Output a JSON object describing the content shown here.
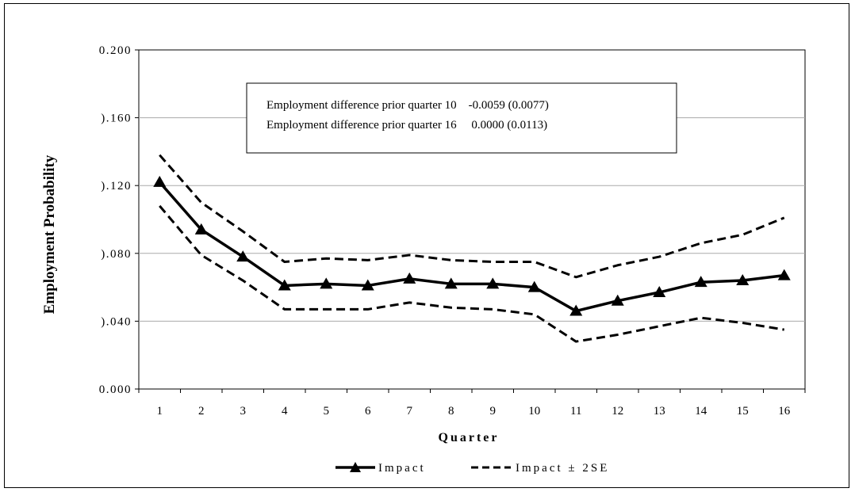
{
  "chart_data": {
    "type": "line",
    "xlabel": "Quarter",
    "ylabel": "Employment Probability",
    "categories": [
      "1",
      "2",
      "3",
      "4",
      "5",
      "6",
      "7",
      "8",
      "9",
      "10",
      "11",
      "12",
      "13",
      "14",
      "15",
      "16"
    ],
    "ylim": [
      0,
      0.2
    ],
    "yticks": [
      "0.000",
      ").040",
      ").080",
      ").120",
      ").160",
      "0.200"
    ],
    "grid": true,
    "legend_position": "bottom",
    "series": [
      {
        "name": "Impact",
        "style": "solid-triangle",
        "color": "#000000",
        "values": [
          0.122,
          0.094,
          0.078,
          0.061,
          0.062,
          0.061,
          0.065,
          0.062,
          0.062,
          0.06,
          0.046,
          0.052,
          0.057,
          0.063,
          0.064,
          0.067
        ]
      },
      {
        "name": "Impact ± 2SE",
        "style": "dashed",
        "color": "#000000",
        "values": [
          0.138,
          0.11,
          0.093,
          0.075,
          0.077,
          0.076,
          0.079,
          0.076,
          0.075,
          0.075,
          0.066,
          0.073,
          0.078,
          0.086,
          0.091,
          0.101
        ]
      },
      {
        "name": "",
        "style": "dashed",
        "color": "#000000",
        "values": [
          0.108,
          0.079,
          0.064,
          0.047,
          0.047,
          0.047,
          0.051,
          0.048,
          0.047,
          0.044,
          0.028,
          0.032,
          0.037,
          0.042,
          0.039,
          0.035
        ]
      }
    ],
    "annotations": [
      "Employment difference prior quarter 10    -0.0059 (0.0077)",
      "Employment difference prior quarter 16     0.0000 (0.0113)"
    ]
  }
}
